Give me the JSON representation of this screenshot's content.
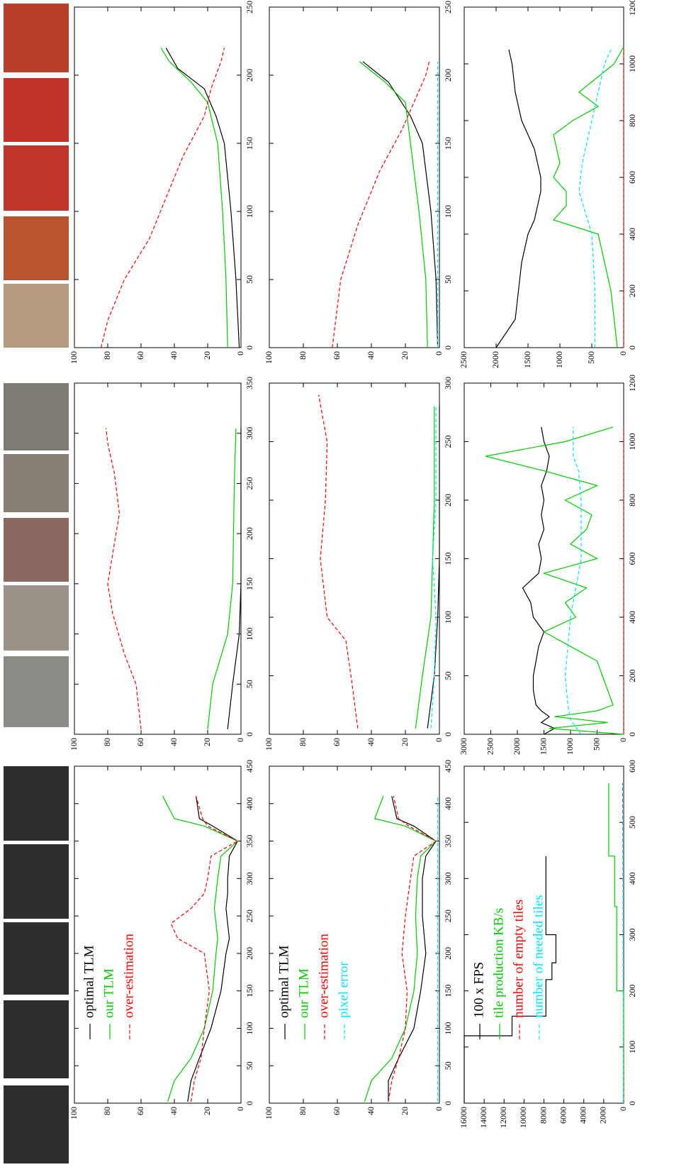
{
  "chart_data": [
    {
      "type": "line",
      "xlim": [
        0,
        450
      ],
      "ylim": [
        0,
        100
      ],
      "xticks": [
        0,
        50,
        100,
        150,
        200,
        250,
        300,
        350,
        400,
        450
      ],
      "yticks": [
        0,
        20,
        40,
        60,
        80,
        100
      ],
      "legend": "top left",
      "series": [
        {
          "name": "optimal TLM",
          "color": "#000000",
          "dash": false,
          "x": [
            2,
            30,
            60,
            100,
            150,
            200,
            220,
            240,
            260,
            280,
            300,
            330,
            350,
            370,
            380,
            410
          ],
          "values": [
            32,
            30,
            25,
            18,
            12,
            9,
            7,
            8,
            9,
            8,
            8,
            7,
            2,
            17,
            25,
            27
          ]
        },
        {
          "name": "our TLM",
          "color": "#00cc00",
          "dash": false,
          "x": [
            2,
            30,
            60,
            100,
            150,
            200,
            220,
            240,
            260,
            280,
            300,
            330,
            350,
            370,
            380,
            410
          ],
          "values": [
            44,
            40,
            30,
            22,
            17,
            15,
            14,
            15,
            16,
            15,
            14,
            12,
            2,
            22,
            40,
            47
          ]
        },
        {
          "name": "over-estimation",
          "color": "#ff0000",
          "dash": true,
          "x": [
            2,
            30,
            60,
            100,
            150,
            200,
            220,
            240,
            260,
            280,
            300,
            330,
            350,
            370,
            380,
            410
          ],
          "values": [
            30,
            28,
            24,
            22,
            19,
            22,
            38,
            42,
            30,
            22,
            20,
            18,
            2,
            20,
            23,
            27
          ]
        }
      ]
    },
    {
      "type": "line",
      "xlim": [
        0,
        450
      ],
      "ylim": [
        0,
        100
      ],
      "xticks": [
        0,
        50,
        100,
        150,
        200,
        250,
        300,
        350,
        400,
        450
      ],
      "yticks": [
        0,
        20,
        40,
        60,
        80,
        100
      ],
      "legend": "top left",
      "series": [
        {
          "name": "optimal TLM",
          "color": "#000000",
          "dash": false,
          "x": [
            2,
            30,
            60,
            100,
            150,
            200,
            250,
            300,
            330,
            350,
            370,
            380,
            410
          ],
          "values": [
            30,
            30,
            24,
            15,
            11,
            8,
            10,
            10,
            8,
            2,
            15,
            25,
            28
          ]
        },
        {
          "name": "our TLM",
          "color": "#00cc00",
          "dash": false,
          "x": [
            2,
            30,
            60,
            100,
            150,
            200,
            250,
            300,
            330,
            350,
            370,
            380,
            410
          ],
          "values": [
            44,
            40,
            28,
            20,
            15,
            13,
            14,
            13,
            11,
            2,
            20,
            38,
            33
          ]
        },
        {
          "name": "over-estimation",
          "color": "#ff0000",
          "dash": true,
          "x": [
            2,
            30,
            60,
            100,
            150,
            200,
            250,
            300,
            330,
            350,
            370,
            380,
            410
          ],
          "values": [
            30,
            28,
            24,
            20,
            19,
            22,
            20,
            17,
            15,
            2,
            18,
            24,
            27
          ]
        },
        {
          "name": "pixel error",
          "color": "#00e5ff",
          "dash": true,
          "x": [
            2,
            100,
            200,
            300,
            350,
            410
          ],
          "values": [
            1,
            1,
            1,
            1,
            1,
            1
          ]
        }
      ]
    },
    {
      "type": "line",
      "xlim": [
        0,
        600
      ],
      "ylim": [
        0,
        16000
      ],
      "xticks": [
        0,
        100,
        200,
        300,
        400,
        500,
        600
      ],
      "yticks": [
        0,
        2000,
        4000,
        6000,
        8000,
        10000,
        12000,
        14000,
        16000
      ],
      "legend": "top left",
      "series": [
        {
          "name": "100 x FPS",
          "color": "#000000",
          "dash": false,
          "x": [
            0,
            120,
            120,
            155,
            155,
            220,
            220,
            250,
            250,
            300,
            300,
            440
          ],
          "values": [
            16000,
            16000,
            11200,
            11200,
            7800,
            7800,
            7200,
            7200,
            6800,
            6800,
            7800,
            7800
          ]
        },
        {
          "name": "tile production KB/s",
          "color": "#00cc00",
          "dash": false,
          "x": [
            0,
            200,
            200,
            350,
            350,
            440,
            440,
            570
          ],
          "values": [
            0,
            0,
            700,
            700,
            900,
            900,
            1500,
            1500
          ]
        },
        {
          "name": "number of empty tiles",
          "color": "#ff0000",
          "dash": true,
          "x": [
            0,
            570
          ],
          "values": [
            0,
            100
          ]
        },
        {
          "name": "number of needed tiles",
          "color": "#00e5ff",
          "dash": true,
          "x": [
            0,
            570
          ],
          "values": [
            50,
            50
          ]
        }
      ]
    },
    {
      "type": "line",
      "xlim": [
        0,
        350
      ],
      "ylim": [
        0,
        100
      ],
      "xticks": [
        0,
        50,
        100,
        150,
        200,
        250,
        300,
        350
      ],
      "yticks": [
        0,
        20,
        40,
        60,
        80,
        100
      ],
      "series": [
        {
          "color": "#000000",
          "dash": false,
          "x": [
            5,
            50,
            100,
            150,
            250,
            305
          ],
          "values": [
            8,
            5,
            1,
            0,
            0,
            0
          ]
        },
        {
          "color": "#00cc00",
          "dash": false,
          "x": [
            5,
            50,
            100,
            150,
            250,
            305
          ],
          "values": [
            20,
            17,
            8,
            5,
            4,
            3
          ]
        },
        {
          "color": "#ff0000",
          "dash": true,
          "x": [
            5,
            50,
            80,
            120,
            150,
            180,
            220,
            260,
            290,
            305
          ],
          "values": [
            60,
            63,
            70,
            77,
            80,
            77,
            73,
            76,
            80,
            81
          ]
        }
      ]
    },
    {
      "type": "line",
      "xlim": [
        0,
        300
      ],
      "ylim": [
        0,
        100
      ],
      "xticks": [
        0,
        50,
        100,
        150,
        200,
        250,
        300
      ],
      "yticks": [
        0,
        20,
        40,
        60,
        80,
        100
      ],
      "series": [
        {
          "color": "#000000",
          "dash": false,
          "x": [
            5,
            50,
            100,
            150,
            280
          ],
          "values": [
            7,
            3,
            1,
            0,
            0
          ]
        },
        {
          "color": "#00cc00",
          "dash": false,
          "x": [
            5,
            50,
            100,
            200,
            280
          ],
          "values": [
            14,
            10,
            5,
            3,
            3
          ]
        },
        {
          "color": "#ff0000",
          "dash": true,
          "x": [
            5,
            50,
            80,
            100,
            150,
            200,
            250,
            290
          ],
          "values": [
            48,
            52,
            55,
            66,
            70,
            67,
            66,
            71
          ]
        },
        {
          "color": "#00e5ff",
          "dash": true,
          "x": [
            5,
            50,
            100,
            150,
            200,
            280
          ],
          "values": [
            5,
            3,
            2,
            4,
            2,
            2
          ]
        }
      ]
    },
    {
      "type": "line",
      "xlim": [
        0,
        1200
      ],
      "ylim": [
        0,
        3000
      ],
      "xticks": [
        0,
        200,
        400,
        600,
        800,
        1000,
        1200
      ],
      "yticks": [
        0,
        500,
        1000,
        1500,
        2000,
        2500,
        3000
      ],
      "series": [
        {
          "color": "#000000",
          "dash": false,
          "x": [
            0,
            20,
            40,
            60,
            80,
            100,
            150,
            200,
            250,
            300,
            350,
            400,
            450,
            500,
            550,
            600,
            650,
            700,
            750,
            800,
            850,
            900,
            950,
            1000,
            1050
          ],
          "values": [
            1500,
            1300,
            1550,
            1400,
            1550,
            1650,
            1700,
            1700,
            1650,
            1600,
            1500,
            1700,
            1750,
            1900,
            1600,
            1550,
            1600,
            1500,
            1550,
            1500,
            1550,
            1450,
            1400,
            1500,
            1550
          ]
        },
        {
          "color": "#00cc00",
          "dash": false,
          "x": [
            0,
            20,
            40,
            60,
            80,
            100,
            150,
            200,
            250,
            300,
            350,
            400,
            450,
            500,
            550,
            600,
            650,
            700,
            750,
            800,
            850,
            900,
            950,
            1000,
            1050
          ],
          "values": [
            0,
            1400,
            300,
            1300,
            500,
            200,
            300,
            400,
            500,
            1000,
            1500,
            900,
            1100,
            700,
            1500,
            500,
            1000,
            700,
            600,
            1100,
            500,
            1500,
            2600,
            1100,
            200
          ]
        },
        {
          "color": "#ff0000",
          "dash": true,
          "x": [
            0,
            1050
          ],
          "values": [
            0,
            0
          ]
        },
        {
          "color": "#00e5ff",
          "dash": true,
          "x": [
            0,
            50,
            100,
            200,
            300,
            400,
            500,
            600,
            700,
            800,
            900,
            950,
            1050
          ],
          "values": [
            800,
            1000,
            1050,
            1100,
            1050,
            1000,
            900,
            800,
            800,
            800,
            850,
            950,
            950
          ]
        }
      ]
    },
    {
      "type": "line",
      "xlim": [
        0,
        250
      ],
      "ylim": [
        0,
        100
      ],
      "xticks": [
        0,
        50,
        100,
        150,
        200,
        250
      ],
      "yticks": [
        0,
        20,
        40,
        60,
        80,
        100
      ],
      "series": [
        {
          "color": "#000000",
          "dash": false,
          "x": [
            0,
            50,
            100,
            150,
            170,
            190,
            205,
            220
          ],
          "values": [
            1,
            3,
            6,
            10,
            15,
            22,
            38,
            45
          ]
        },
        {
          "color": "#00cc00",
          "dash": false,
          "x": [
            0,
            50,
            100,
            150,
            180,
            195,
            210,
            220
          ],
          "values": [
            8,
            9,
            11,
            14,
            20,
            30,
            43,
            48
          ]
        },
        {
          "color": "#ff0000",
          "dash": true,
          "x": [
            0,
            20,
            50,
            80,
            110,
            140,
            170,
            190,
            210,
            220
          ],
          "values": [
            84,
            80,
            70,
            55,
            45,
            35,
            22,
            18,
            12,
            10
          ]
        }
      ]
    },
    {
      "type": "line",
      "xlim": [
        0,
        250
      ],
      "ylim": [
        0,
        100
      ],
      "xticks": [
        0,
        50,
        100,
        150,
        200,
        250
      ],
      "yticks": [
        0,
        20,
        40,
        60,
        80,
        100
      ],
      "series": [
        {
          "color": "#000000",
          "dash": false,
          "x": [
            0,
            50,
            100,
            150,
            170,
            195,
            210
          ],
          "values": [
            1,
            2,
            5,
            10,
            17,
            30,
            45
          ]
        },
        {
          "color": "#00cc00",
          "dash": false,
          "x": [
            0,
            50,
            100,
            150,
            180,
            195,
            210
          ],
          "values": [
            7,
            8,
            12,
            17,
            20,
            32,
            47
          ]
        },
        {
          "color": "#ff0000",
          "dash": true,
          "x": [
            0,
            50,
            90,
            130,
            160,
            180,
            200,
            210
          ],
          "values": [
            63,
            58,
            48,
            35,
            22,
            15,
            8,
            6
          ]
        },
        {
          "color": "#00e5ff",
          "dash": true,
          "x": [
            0,
            100,
            210
          ],
          "values": [
            1,
            1,
            1
          ]
        }
      ]
    },
    {
      "type": "line",
      "xlim": [
        0,
        1200
      ],
      "ylim": [
        0,
        2500
      ],
      "xticks": [
        0,
        200,
        400,
        600,
        800,
        1000,
        1200
      ],
      "yticks": [
        0,
        500,
        1000,
        1500,
        2000,
        2500
      ],
      "series": [
        {
          "color": "#000000",
          "dash": false,
          "x": [
            0,
            100,
            200,
            300,
            400,
            450,
            500,
            550,
            600,
            700,
            750,
            800,
            900,
            1000,
            1050
          ],
          "values": [
            2000,
            1700,
            1650,
            1600,
            1500,
            1400,
            1350,
            1300,
            1300,
            1400,
            1500,
            1600,
            1700,
            1750,
            1800
          ]
        },
        {
          "color": "#00cc00",
          "dash": false,
          "x": [
            0,
            100,
            200,
            300,
            400,
            450,
            500,
            550,
            600,
            650,
            750,
            800,
            850,
            900,
            1000,
            1060
          ],
          "values": [
            100,
            150,
            200,
            300,
            400,
            1100,
            900,
            900,
            1100,
            1000,
            1100,
            800,
            400,
            700,
            150,
            0
          ]
        },
        {
          "color": "#ff0000",
          "dash": true,
          "x": [
            0,
            1060
          ],
          "values": [
            0,
            0
          ]
        },
        {
          "color": "#00e5ff",
          "dash": true,
          "x": [
            0,
            200,
            400,
            550,
            650,
            800,
            900,
            1000,
            1050
          ],
          "values": [
            450,
            450,
            500,
            700,
            650,
            500,
            400,
            300,
            200
          ]
        }
      ]
    }
  ]
}
